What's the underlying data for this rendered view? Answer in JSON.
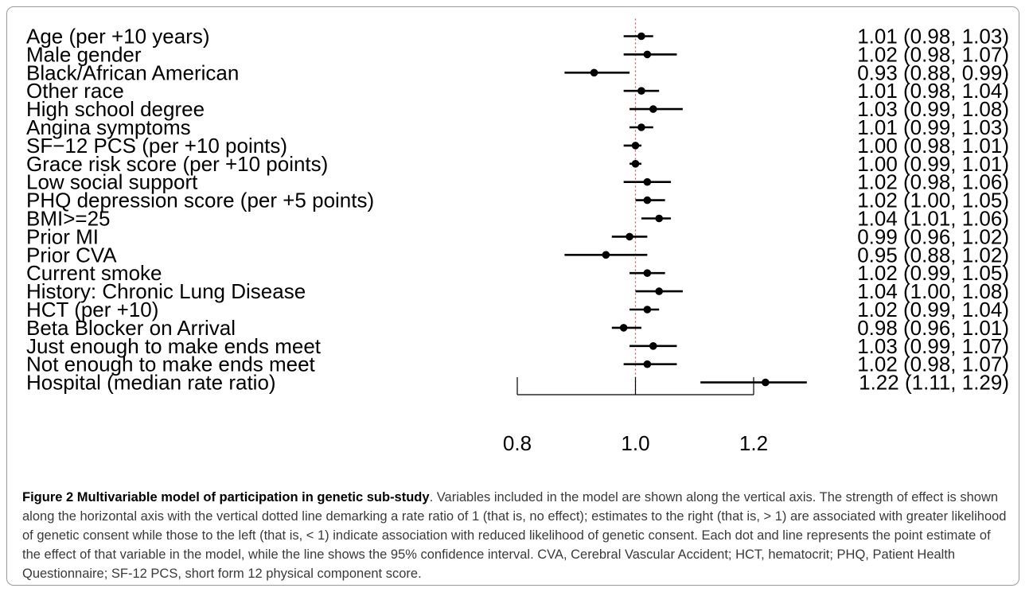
{
  "chart_data": {
    "type": "forest",
    "reference_value": 1,
    "xlim": [
      0.8,
      1.2
    ],
    "xticks": [
      "0.8",
      "1.0",
      "1.2"
    ],
    "rows": [
      {
        "label": "Age (per +10 years)",
        "estimate": 1.01,
        "lower": 0.98,
        "upper": 1.03,
        "text": "1.01 (0.98, 1.03)"
      },
      {
        "label": "Male gender",
        "estimate": 1.02,
        "lower": 0.98,
        "upper": 1.07,
        "text": "1.02 (0.98, 1.07)"
      },
      {
        "label": "Black/African American",
        "estimate": 0.93,
        "lower": 0.88,
        "upper": 0.99,
        "text": "0.93 (0.88, 0.99)"
      },
      {
        "label": "Other race",
        "estimate": 1.01,
        "lower": 0.98,
        "upper": 1.04,
        "text": "1.01 (0.98, 1.04)"
      },
      {
        "label": "High school degree",
        "estimate": 1.03,
        "lower": 0.99,
        "upper": 1.08,
        "text": "1.03 (0.99, 1.08)"
      },
      {
        "label": "Angina symptoms",
        "estimate": 1.01,
        "lower": 0.99,
        "upper": 1.03,
        "text": "1.01 (0.99, 1.03)"
      },
      {
        "label": "SF−12 PCS (per +10 points)",
        "estimate": 1.0,
        "lower": 0.98,
        "upper": 1.01,
        "text": "1.00 (0.98, 1.01)"
      },
      {
        "label": "Grace risk score (per +10 points)",
        "estimate": 1.0,
        "lower": 0.99,
        "upper": 1.01,
        "text": "1.00 (0.99, 1.01)"
      },
      {
        "label": "Low social support",
        "estimate": 1.02,
        "lower": 0.98,
        "upper": 1.06,
        "text": "1.02 (0.98, 1.06)"
      },
      {
        "label": "PHQ depression score (per +5 points)",
        "estimate": 1.02,
        "lower": 1.0,
        "upper": 1.05,
        "text": "1.02 (1.00, 1.05)"
      },
      {
        "label": "BMI>=25",
        "estimate": 1.04,
        "lower": 1.01,
        "upper": 1.06,
        "text": "1.04 (1.01, 1.06)"
      },
      {
        "label": "Prior MI",
        "estimate": 0.99,
        "lower": 0.96,
        "upper": 1.02,
        "text": "0.99 (0.96, 1.02)"
      },
      {
        "label": "Prior CVA",
        "estimate": 0.95,
        "lower": 0.88,
        "upper": 1.02,
        "text": "0.95 (0.88, 1.02)"
      },
      {
        "label": "Current smoke",
        "estimate": 1.02,
        "lower": 0.99,
        "upper": 1.05,
        "text": "1.02 (0.99, 1.05)"
      },
      {
        "label": "History: Chronic Lung Disease",
        "estimate": 1.04,
        "lower": 1.0,
        "upper": 1.08,
        "text": "1.04 (1.00, 1.08)"
      },
      {
        "label": "HCT (per +10)",
        "estimate": 1.02,
        "lower": 0.99,
        "upper": 1.04,
        "text": "1.02 (0.99, 1.04)"
      },
      {
        "label": "Beta Blocker on Arrival",
        "estimate": 0.98,
        "lower": 0.96,
        "upper": 1.01,
        "text": "0.98 (0.96, 1.01)"
      },
      {
        "label": "Just enough to make ends meet",
        "estimate": 1.03,
        "lower": 0.99,
        "upper": 1.07,
        "text": "1.03 (0.99, 1.07)"
      },
      {
        "label": "Not enough to make ends meet",
        "estimate": 1.02,
        "lower": 0.98,
        "upper": 1.07,
        "text": "1.02 (0.98, 1.07)"
      },
      {
        "label": "Hospital (median rate ratio)",
        "estimate": 1.22,
        "lower": 1.11,
        "upper": 1.29,
        "text": "1.22 (1.11, 1.29)"
      }
    ],
    "colors": {
      "point": "#000000",
      "ci_line": "#000000",
      "reference_line": "#cc5566",
      "axis": "#000000"
    },
    "grid": false
  },
  "caption": {
    "title": "Figure 2 Multivariable model of participation in genetic sub-study",
    "text": ". Variables included in the model are shown along the vertical axis. The strength of effect is shown along the horizontal axis with the vertical dotted line demarking a rate ratio of 1 (that is, no effect); estimates to the right (that is, > 1) are associated with greater likelihood of genetic consent while those to the left (that is, < 1) indicate association with reduced likelihood of genetic consent. Each dot and line represents the point estimate of the effect of that variable in the model, while the line shows the 95% confidence interval. CVA, Cerebral Vascular Accident; HCT, hematocrit; PHQ, Patient Health Questionnaire; SF-12 PCS, short form 12 physical component score."
  }
}
